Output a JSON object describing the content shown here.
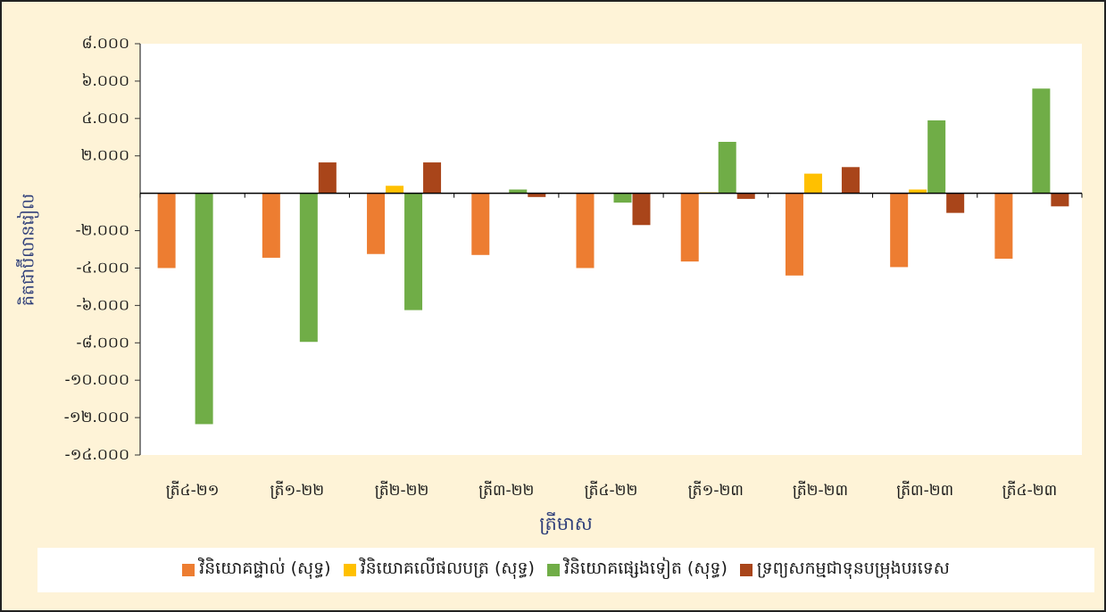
{
  "chart_data": {
    "type": "bar",
    "y_label": "គិតជាប៊ីលានរៀល",
    "x_label": "ត្រីមាស",
    "categories": [
      "ត្រី៤-២១",
      "ត្រី១-២២",
      "ត្រី២-២២",
      "ត្រី៣-២២",
      "ត្រី៤-២២",
      "ត្រី១-២៣",
      "ត្រី២-២៣",
      "ត្រី៣-២៣",
      "ត្រី៤-២៣"
    ],
    "series": [
      {
        "name": "វិនិយោគផ្ទាល់ (សុទ្ធ)",
        "color": "#ed7d31",
        "values": [
          -4000,
          -3450,
          -3250,
          -3300,
          -4000,
          -3650,
          -4400,
          -3950,
          -3500
        ]
      },
      {
        "name": "វិនិយោគលើផលបត្រ (សុទ្ធ)",
        "color": "#ffc000",
        "values": [
          0,
          0,
          400,
          0,
          0,
          50,
          1050,
          200,
          0
        ]
      },
      {
        "name": "វិនិយោគផ្សេងទៀត (សុទ្ធ)",
        "color": "#70ad47",
        "values": [
          -12350,
          -7950,
          -6250,
          200,
          -500,
          2750,
          0,
          3900,
          5600
        ]
      },
      {
        "name": "ទ្រព្យសកម្មជាទុនបម្រុងបរទេស",
        "color": "#a9451a",
        "values": [
          0,
          1650,
          1650,
          -200,
          -1700,
          -300,
          1400,
          -1050,
          -700
        ]
      }
    ],
    "ylim": [
      -14000,
      8000
    ],
    "yticks": [
      {
        "value": 8000,
        "label": "៨.០០០"
      },
      {
        "value": 6000,
        "label": "៦.០០០"
      },
      {
        "value": 4000,
        "label": "៤.០០០"
      },
      {
        "value": 2000,
        "label": "២.០០០"
      },
      {
        "value": -2000,
        "label": "-២.០០០"
      },
      {
        "value": -4000,
        "label": "-៤.០០០"
      },
      {
        "value": -6000,
        "label": "-៦.០០០"
      },
      {
        "value": -8000,
        "label": "-៨.០០០"
      },
      {
        "value": -10000,
        "label": "-១០.០០០"
      },
      {
        "value": -12000,
        "label": "-១២.០០០"
      },
      {
        "value": -14000,
        "label": "-១៤.០០០"
      }
    ],
    "grid": false
  }
}
